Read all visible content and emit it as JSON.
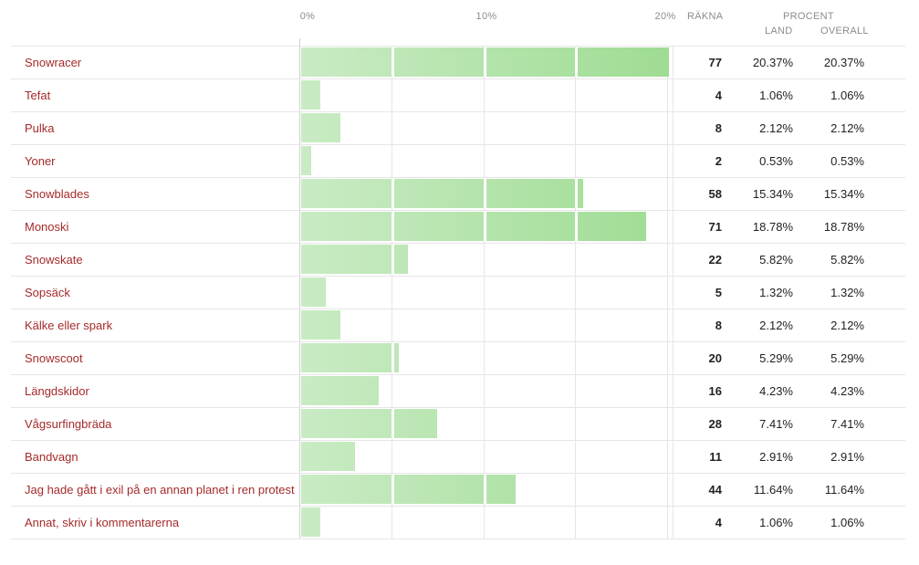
{
  "header": {
    "count_label": "RÄKNA",
    "percent_label": "PROCENT",
    "land_label": "LAND",
    "overall_label": "OVERALL"
  },
  "colors": {
    "bar_light": "#c9ebc4",
    "bar_dark": "#9fdc93",
    "label": "#a52a2a"
  },
  "chart_data": {
    "type": "bar",
    "orientation": "horizontal",
    "x_ticks": [
      "0%",
      "10%",
      "20%"
    ],
    "xlim": [
      0,
      20.37
    ],
    "rows": [
      {
        "label": "Snowracer",
        "count": "77",
        "land": "20.37%",
        "overall": "20.37%",
        "value": 20.37
      },
      {
        "label": "Tefat",
        "count": "4",
        "land": "1.06%",
        "overall": "1.06%",
        "value": 1.06
      },
      {
        "label": "Pulka",
        "count": "8",
        "land": "2.12%",
        "overall": "2.12%",
        "value": 2.12
      },
      {
        "label": "Yoner",
        "count": "2",
        "land": "0.53%",
        "overall": "0.53%",
        "value": 0.53
      },
      {
        "label": "Snowblades",
        "count": "58",
        "land": "15.34%",
        "overall": "15.34%",
        "value": 15.34
      },
      {
        "label": "Monoski",
        "count": "71",
        "land": "18.78%",
        "overall": "18.78%",
        "value": 18.78
      },
      {
        "label": "Snowskate",
        "count": "22",
        "land": "5.82%",
        "overall": "5.82%",
        "value": 5.82
      },
      {
        "label": "Sopsäck",
        "count": "5",
        "land": "1.32%",
        "overall": "1.32%",
        "value": 1.32
      },
      {
        "label": "Kälke eller spark",
        "count": "8",
        "land": "2.12%",
        "overall": "2.12%",
        "value": 2.12
      },
      {
        "label": "Snowscoot",
        "count": "20",
        "land": "5.29%",
        "overall": "5.29%",
        "value": 5.29
      },
      {
        "label": "Längdskidor",
        "count": "16",
        "land": "4.23%",
        "overall": "4.23%",
        "value": 4.23
      },
      {
        "label": "Vågsurfingbräda",
        "count": "28",
        "land": "7.41%",
        "overall": "7.41%",
        "value": 7.41
      },
      {
        "label": "Bandvagn",
        "count": "11",
        "land": "2.91%",
        "overall": "2.91%",
        "value": 2.91
      },
      {
        "label": "Jag hade gått i exil på en annan planet i ren protest",
        "count": "44",
        "land": "11.64%",
        "overall": "11.64%",
        "value": 11.64
      },
      {
        "label": "Annat, skriv i kommentarerna",
        "count": "4",
        "land": "1.06%",
        "overall": "1.06%",
        "value": 1.06
      }
    ]
  }
}
